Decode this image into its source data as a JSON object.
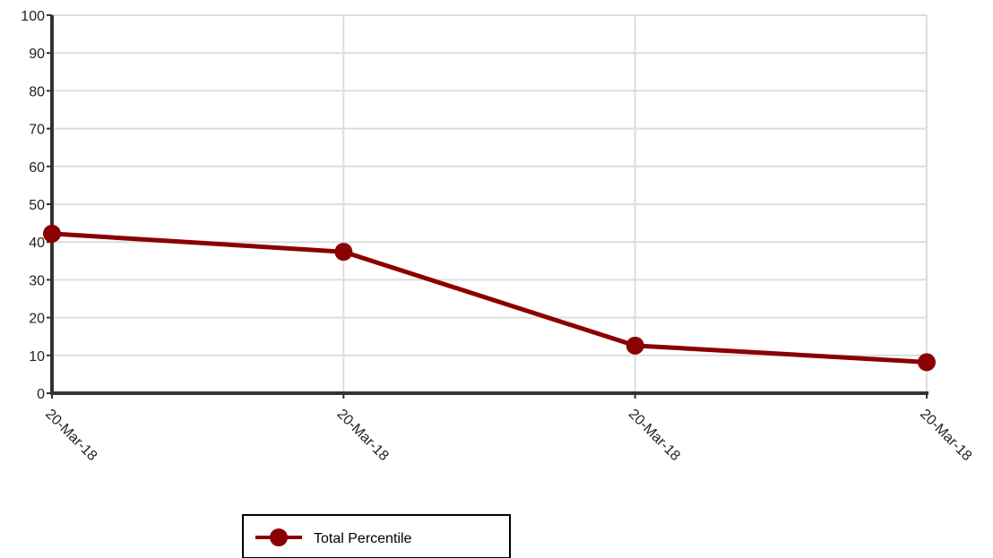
{
  "chart_data": {
    "type": "line",
    "title": "",
    "xlabel": "",
    "ylabel": "",
    "categories": [
      "20-Mar-18",
      "20-Mar-18",
      "20-Mar-18",
      "20-Mar-18"
    ],
    "ylim": [
      0,
      100
    ],
    "yticks": [
      0,
      10,
      20,
      30,
      40,
      50,
      60,
      70,
      80,
      90,
      100
    ],
    "grid": true,
    "legend_position": "bottom",
    "series": [
      {
        "name": "Total Percentile",
        "values": [
          42.2,
          37.4,
          12.6,
          8.2
        ],
        "color": "#8b0000"
      }
    ]
  }
}
